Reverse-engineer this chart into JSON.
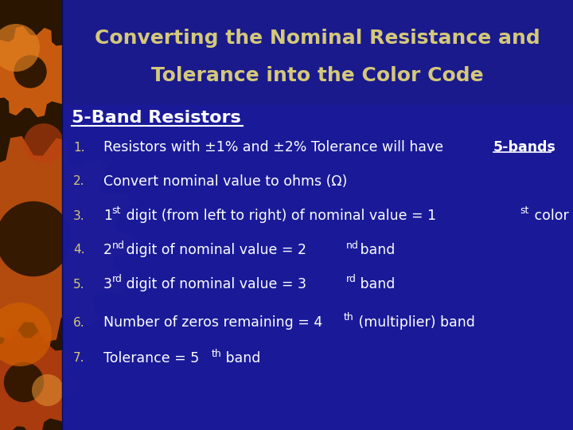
{
  "title_line1": "Converting the Nominal Resistance and",
  "title_line2": "Tolerance into the Color Code",
  "subtitle": "5-Band Resistors",
  "bg_color": "#1a1a8c",
  "left_bg_color": "#2a1500",
  "title_color": "#d4c87a",
  "subtitle_color": "#ffffff",
  "text_color": "#ffffff",
  "number_color": "#d4c87a",
  "gear_color_orange": "#c86010",
  "gear_color_blue": "#3a4ab5",
  "figsize": [
    7.2,
    5.4
  ],
  "dpi": 100
}
